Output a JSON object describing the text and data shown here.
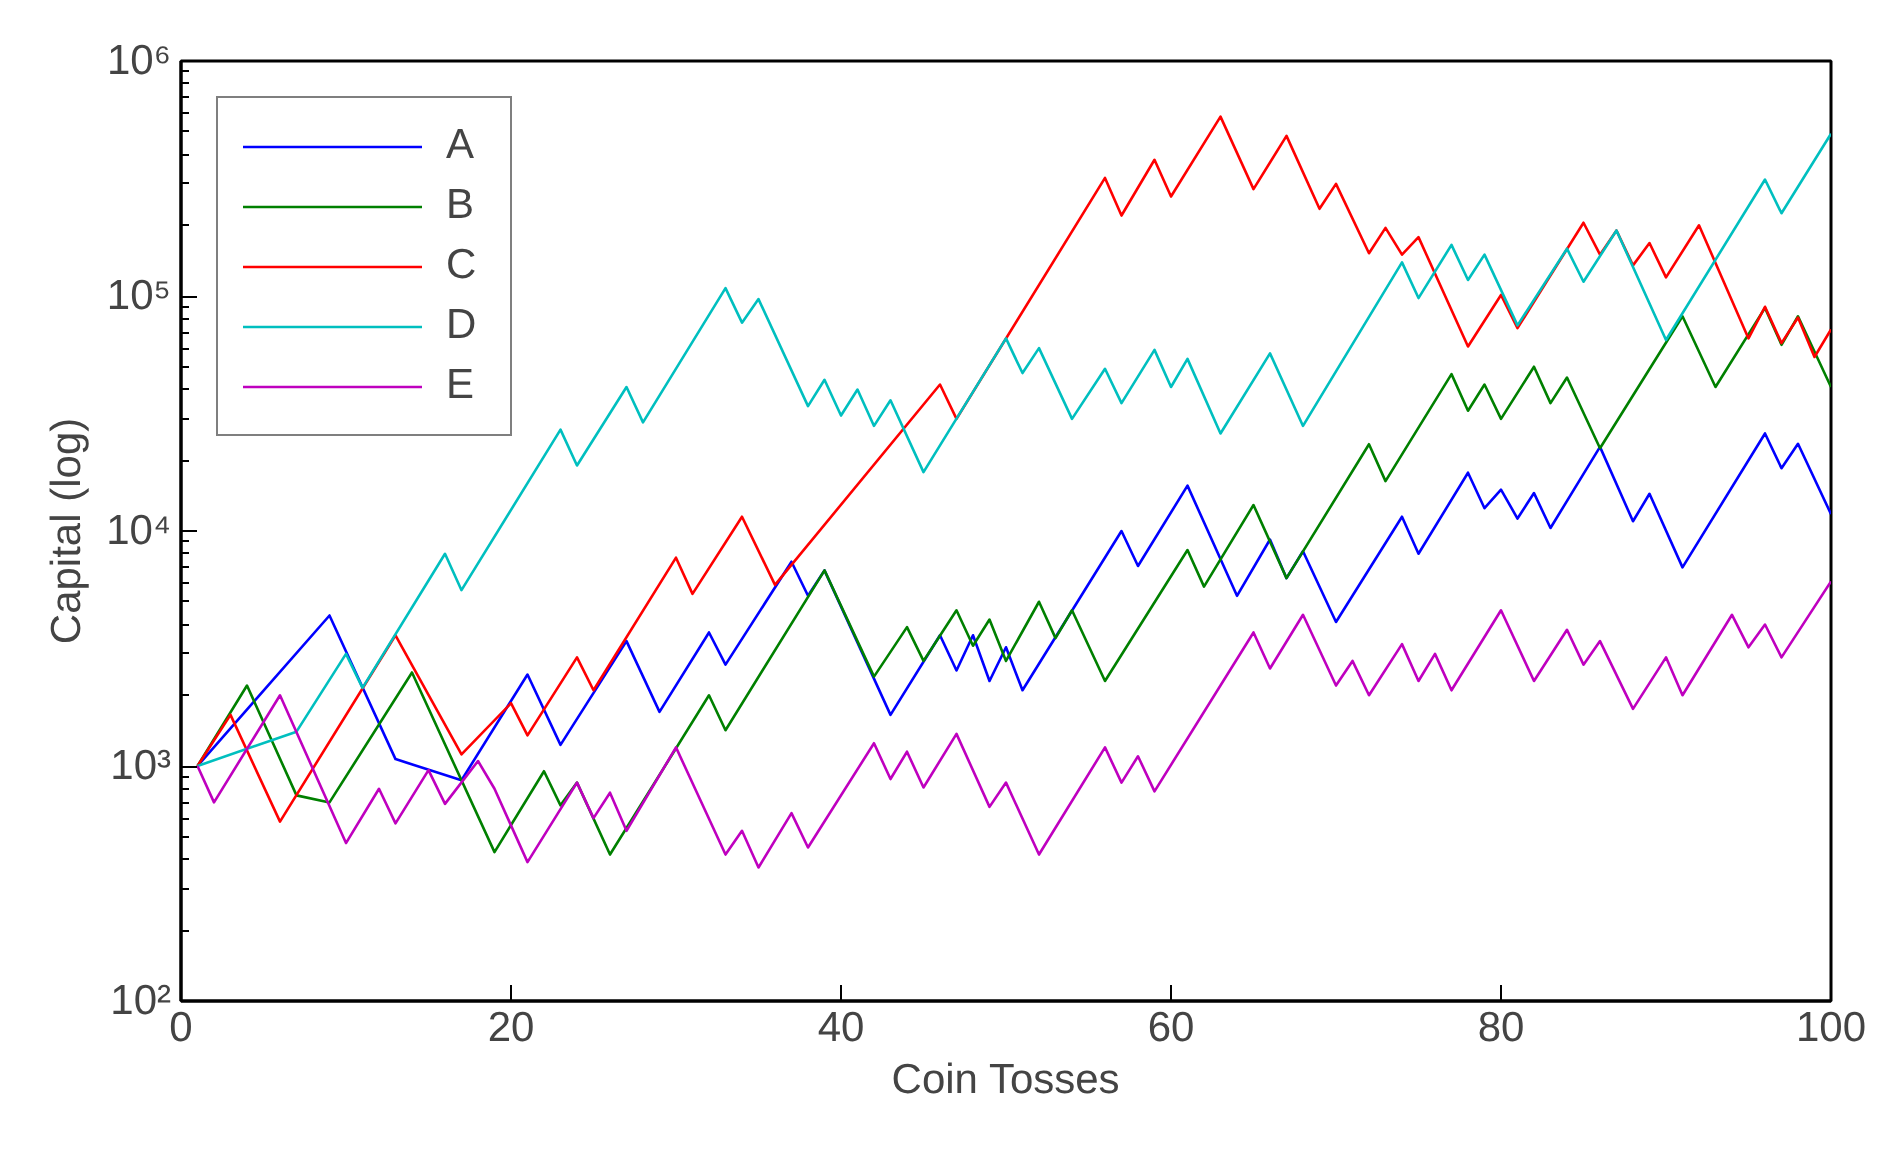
{
  "chart_data": {
    "type": "line",
    "xlabel": "Coin Tosses",
    "ylabel": "Capital (log)",
    "log": "y",
    "grid": false,
    "legend": "top left",
    "line_style": "solid",
    "marker": "none",
    "xlim": [
      0,
      100
    ],
    "xticks": [
      0,
      20,
      40,
      60,
      80,
      100
    ],
    "ylim": [
      100,
      1000000
    ],
    "yticks": [
      {
        "value": 100,
        "label": "10²"
      },
      {
        "value": 1000,
        "label": "10³"
      },
      {
        "value": 10000,
        "label": "10⁴"
      },
      {
        "value": 100000,
        "label": "10⁵"
      },
      {
        "value": 1000000,
        "label": "10⁶"
      }
    ],
    "series": [
      {
        "name": "A",
        "color": "#0000ff",
        "x": [
          1,
          9,
          13,
          17,
          21,
          23,
          27,
          29,
          32,
          33,
          37,
          38,
          39,
          43,
          46,
          47,
          48,
          49,
          50,
          51,
          57,
          58,
          61,
          64,
          66,
          67,
          68,
          70,
          74,
          75,
          78,
          79,
          80,
          81,
          82,
          83,
          86,
          88,
          89,
          91,
          96,
          97,
          98,
          100
        ],
        "values": [
          1000,
          4370,
          1070,
          870,
          2450,
          1230,
          3400,
          1700,
          3700,
          2700,
          7400,
          5300,
          6800,
          1650,
          3600,
          2550,
          3600,
          2300,
          3200,
          2100,
          10000,
          7100,
          15600,
          5300,
          9200,
          6300,
          8200,
          4100,
          11500,
          8000,
          17700,
          12500,
          15000,
          11300,
          14500,
          10300,
          22800,
          11000,
          14400,
          7000,
          26000,
          18500,
          23500,
          11800
        ]
      },
      {
        "name": "B",
        "color": "#008000",
        "x": [
          1,
          4,
          7,
          9,
          14,
          19,
          22,
          23,
          24,
          26,
          32,
          33,
          39,
          42,
          44,
          45,
          47,
          48,
          49,
          50,
          52,
          53,
          54,
          56,
          61,
          62,
          65,
          67,
          72,
          73,
          77,
          78,
          79,
          80,
          82,
          83,
          84,
          86,
          91,
          93,
          96,
          97,
          98,
          100
        ],
        "values": [
          1000,
          2200,
          750,
          700,
          2500,
          430,
          950,
          680,
          850,
          420,
          2000,
          1420,
          6800,
          2400,
          3900,
          2800,
          4600,
          3250,
          4200,
          2800,
          5000,
          3500,
          4600,
          2300,
          8300,
          5800,
          12900,
          6300,
          23400,
          16300,
          46500,
          32500,
          42000,
          30000,
          50000,
          35000,
          45000,
          22500,
          82000,
          41000,
          89000,
          62000,
          82000,
          41000
        ]
      },
      {
        "name": "C",
        "color": "#ff0000",
        "x": [
          1,
          3,
          6,
          13,
          17,
          20,
          21,
          24,
          25,
          30,
          31,
          34,
          36,
          46,
          47,
          56,
          57,
          59,
          60,
          63,
          65,
          67,
          69,
          70,
          72,
          73,
          74,
          75,
          78,
          80,
          81,
          85,
          86,
          87,
          88,
          89,
          90,
          92,
          95,
          96,
          97,
          98,
          99,
          100
        ],
        "values": [
          1000,
          1650,
          580,
          3600,
          1120,
          1850,
          1350,
          2900,
          2100,
          7700,
          5400,
          11500,
          5900,
          42000,
          30000,
          318000,
          220000,
          380000,
          265000,
          580000,
          285000,
          480000,
          235000,
          300000,
          152000,
          195000,
          150000,
          178000,
          61000,
          101000,
          73000,
          205000,
          150000,
          190000,
          135000,
          168000,
          120000,
          200000,
          66000,
          90000,
          63000,
          81000,
          55000,
          72000
        ]
      },
      {
        "name": "D",
        "color": "#00bfbf",
        "x": [
          1,
          7,
          10,
          11,
          16,
          17,
          23,
          24,
          27,
          28,
          33,
          34,
          35,
          38,
          39,
          40,
          41,
          42,
          43,
          45,
          50,
          51,
          52,
          54,
          56,
          57,
          59,
          60,
          61,
          63,
          66,
          68,
          74,
          75,
          77,
          78,
          79,
          81,
          84,
          85,
          87,
          90,
          96,
          97,
          100
        ],
        "values": [
          1000,
          1400,
          3000,
          2150,
          8000,
          5600,
          27000,
          19000,
          41000,
          29000,
          108000,
          77000,
          97000,
          34000,
          44000,
          31000,
          40000,
          28000,
          36000,
          17800,
          66000,
          47000,
          60000,
          30000,
          49000,
          35000,
          59000,
          41000,
          54000,
          26000,
          57000,
          28000,
          139000,
          98000,
          165000,
          117000,
          150000,
          75000,
          159000,
          115000,
          190000,
          65000,
          313000,
          225000,
          490000
        ]
      },
      {
        "name": "E",
        "color": "#bf00bf",
        "x": [
          1,
          2,
          6,
          10,
          12,
          13,
          15,
          16,
          18,
          19,
          21,
          24,
          25,
          26,
          27,
          30,
          33,
          34,
          35,
          37,
          38,
          42,
          43,
          44,
          45,
          47,
          49,
          50,
          52,
          56,
          57,
          58,
          59,
          65,
          66,
          68,
          70,
          71,
          72,
          74,
          75,
          76,
          77,
          80,
          82,
          84,
          85,
          86,
          88,
          90,
          91,
          94,
          95,
          96,
          97,
          100
        ],
        "values": [
          1000,
          700,
          2000,
          470,
          800,
          570,
          960,
          690,
          1050,
          800,
          390,
          850,
          600,
          770,
          530,
          1200,
          420,
          530,
          370,
          630,
          450,
          1250,
          880,
          1150,
          810,
          1370,
          670,
          850,
          420,
          1200,
          850,
          1100,
          780,
          3700,
          2600,
          4400,
          2200,
          2800,
          2000,
          3300,
          2300,
          3000,
          2100,
          4600,
          2300,
          3800,
          2700,
          3400,
          1750,
          2900,
          2000,
          4400,
          3200,
          4000,
          2900,
          6100
        ]
      }
    ]
  }
}
